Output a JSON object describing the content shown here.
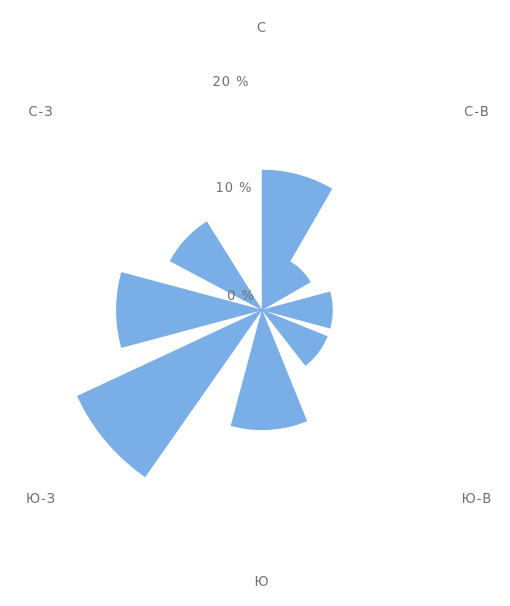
{
  "chart_data": {
    "type": "polar-bar",
    "direction_labels": [
      {
        "key": "n",
        "label": "С"
      },
      {
        "key": "ne",
        "label": "С-В"
      },
      {
        "key": "se",
        "label": "Ю-В"
      },
      {
        "key": "s",
        "label": "Ю"
      },
      {
        "key": "sw",
        "label": "Ю-З"
      },
      {
        "key": "nw",
        "label": "С-З"
      }
    ],
    "radial_tick_labels": [
      {
        "key": "r0",
        "label": "0 %"
      },
      {
        "key": "r10",
        "label": "10 %"
      },
      {
        "key": "r20",
        "label": "20 %"
      }
    ],
    "radial_axis": {
      "min": 0,
      "max": 20,
      "unit": "%"
    },
    "sectors": [
      {
        "start_deg": 0,
        "end_deg": 30,
        "value": 12.5
      },
      {
        "start_deg": 30,
        "end_deg": 60,
        "value": 5.0
      },
      {
        "start_deg": 75,
        "end_deg": 105,
        "value": 6.3
      },
      {
        "start_deg": 112,
        "end_deg": 142,
        "value": 6.3
      },
      {
        "start_deg": 158,
        "end_deg": 195,
        "value": 10.7
      },
      {
        "start_deg": 215,
        "end_deg": 245,
        "value": 18.2
      },
      {
        "start_deg": 255,
        "end_deg": 285,
        "value": 13.0
      },
      {
        "start_deg": 298,
        "end_deg": 328,
        "value": 9.3
      }
    ],
    "colors": {
      "sector": "#7aaee6",
      "label": "#6f6f6f"
    },
    "grid": false
  }
}
